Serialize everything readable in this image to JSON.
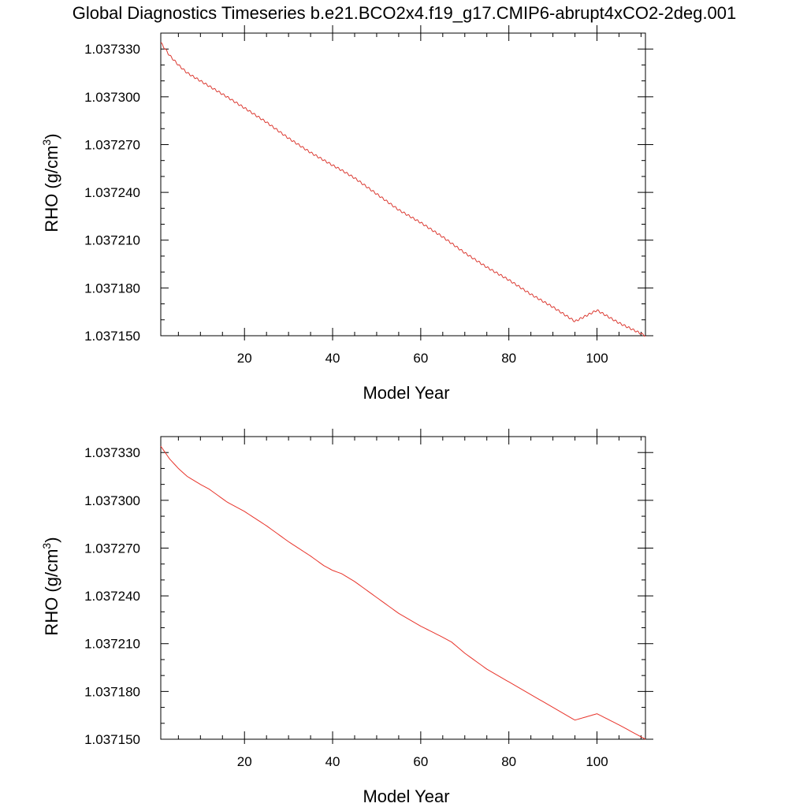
{
  "figure": {
    "title": "Global Diagnostics Timeseries b.e21.BCO2x4.f19_g17.CMIP6-abrupt4xCO2-2deg.001"
  },
  "chart_data": [
    {
      "type": "line",
      "xlabel": "Model Year",
      "ylabel": "RHO (g/cm",
      "ylabel_superscript": "3",
      "ylabel_close": ")",
      "xlim": [
        1,
        111
      ],
      "ylim": [
        1.03715,
        1.03734
      ],
      "xticks": [
        20,
        40,
        60,
        80,
        100
      ],
      "xtick_labels": [
        "20",
        "40",
        "60",
        "80",
        "100"
      ],
      "yticks": [
        1.03715,
        1.03718,
        1.03721,
        1.03724,
        1.03727,
        1.0373,
        1.03733
      ],
      "ytick_labels": [
        "1.037150",
        "1.037180",
        "1.037210",
        "1.037240",
        "1.037270",
        "1.037300",
        "1.037330"
      ],
      "grid": false,
      "series_style": "monthly, seasonal wiggle",
      "series": [
        {
          "color": "#e8342b",
          "x": [
            1,
            3,
            5,
            7,
            10,
            13,
            16,
            20,
            25,
            30,
            35,
            40,
            42,
            45,
            50,
            55,
            60,
            65,
            70,
            75,
            80,
            85,
            90,
            95,
            100,
            105,
            111
          ],
          "y": [
            1.037334,
            1.037326,
            1.03732,
            1.037315,
            1.03731,
            1.037305,
            1.0373,
            1.037293,
            1.037284,
            1.037274,
            1.037265,
            1.037257,
            1.037254,
            1.037249,
            1.037239,
            1.037229,
            1.037221,
            1.037212,
            1.037202,
            1.037193,
            1.037185,
            1.037176,
            1.037168,
            1.037159,
            1.037166,
            1.037158,
            1.03715
          ]
        }
      ]
    },
    {
      "type": "line",
      "xlabel": "Model Year",
      "ylabel": "RHO (g/cm",
      "ylabel_superscript": "3",
      "ylabel_close": ")",
      "xlim": [
        1,
        111
      ],
      "ylim": [
        1.03715,
        1.03734
      ],
      "xticks": [
        20,
        40,
        60,
        80,
        100
      ],
      "xtick_labels": [
        "20",
        "40",
        "60",
        "80",
        "100"
      ],
      "yticks": [
        1.03715,
        1.03718,
        1.03721,
        1.03724,
        1.03727,
        1.0373,
        1.03733
      ],
      "ytick_labels": [
        "1.037150",
        "1.037180",
        "1.037210",
        "1.037240",
        "1.037270",
        "1.037300",
        "1.037330"
      ],
      "grid": false,
      "series_style": "annual mean",
      "series": [
        {
          "color": "#e8342b",
          "x": [
            1,
            3,
            5,
            7,
            10,
            12,
            14,
            16,
            20,
            25,
            30,
            35,
            38,
            40,
            42,
            45,
            50,
            55,
            60,
            65,
            67,
            70,
            75,
            80,
            85,
            90,
            95,
            100,
            105,
            111
          ],
          "y": [
            1.037334,
            1.037326,
            1.03732,
            1.037315,
            1.03731,
            1.037307,
            1.037303,
            1.037299,
            1.037293,
            1.037284,
            1.037274,
            1.037265,
            1.037259,
            1.037256,
            1.037254,
            1.037249,
            1.037239,
            1.037229,
            1.037221,
            1.037214,
            1.037211,
            1.037204,
            1.037194,
            1.037186,
            1.037178,
            1.03717,
            1.037162,
            1.037166,
            1.037159,
            1.03715
          ]
        }
      ]
    }
  ]
}
